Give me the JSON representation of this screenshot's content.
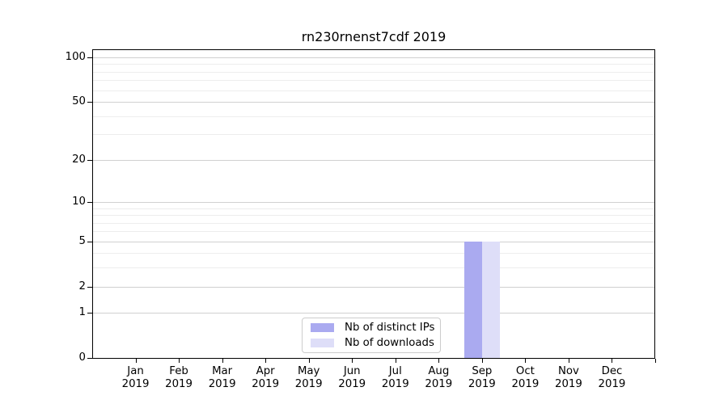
{
  "title": "rn230rnenst7cdf 2019",
  "chart_data": {
    "type": "bar",
    "title": "rn230rnenst7cdf 2019",
    "scale": "log1p",
    "categories": [
      "Jan 2019",
      "Feb 2019",
      "Mar 2019",
      "Apr 2019",
      "May 2019",
      "Jun 2019",
      "Jul 2019",
      "Aug 2019",
      "Sep 2019",
      "Oct 2019",
      "Nov 2019",
      "Dec 2019"
    ],
    "month_labels": [
      "Jan",
      "Feb",
      "Mar",
      "Apr",
      "May",
      "Jun",
      "Jul",
      "Aug",
      "Sep",
      "Oct",
      "Nov",
      "Dec"
    ],
    "year_label": "2019",
    "series": [
      {
        "name": "Nb of distinct IPs",
        "color": "#aaaaf0",
        "values": [
          0,
          0,
          0,
          0,
          0,
          0,
          0,
          0,
          5,
          0,
          0,
          0
        ]
      },
      {
        "name": "Nb of downloads",
        "color": "#dedef8",
        "values": [
          0,
          0,
          0,
          0,
          0,
          0,
          0,
          0,
          5,
          0,
          0,
          0
        ]
      }
    ],
    "yticks": [
      0,
      1,
      2,
      5,
      10,
      20,
      50,
      100
    ],
    "minor_gridlines": [
      3,
      4,
      6,
      7,
      8,
      9,
      30,
      40,
      60,
      70,
      80,
      90
    ],
    "ylim": [
      0,
      113
    ],
    "xlabel": "",
    "ylabel": "",
    "grid": "horizontal",
    "legend_position": "lower center"
  },
  "colors": {
    "major_grid": "#d0d0d0",
    "minor_grid": "#ededed",
    "axis": "#000000",
    "legend_border": "#cccccc"
  }
}
